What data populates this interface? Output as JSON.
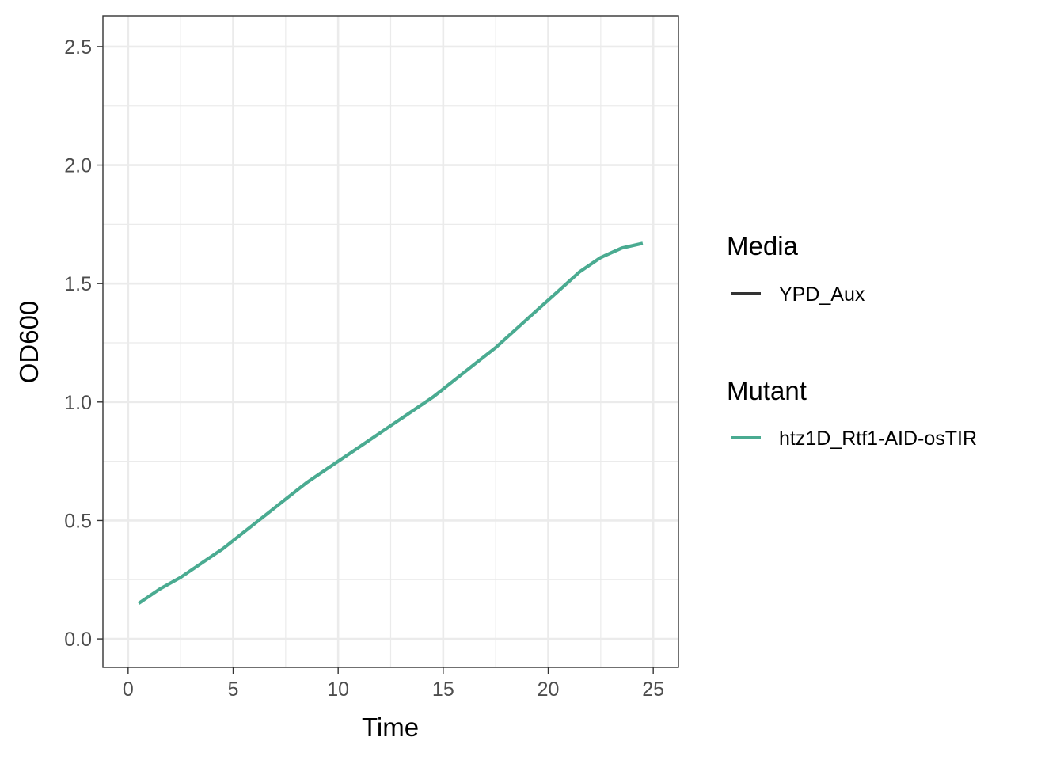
{
  "chart_data": {
    "type": "line",
    "xlabel": "Time",
    "ylabel": "OD600",
    "xlim": [
      -1.2,
      26.2
    ],
    "ylim": [
      -0.12,
      2.63
    ],
    "x_ticks": [
      0,
      5,
      10,
      15,
      20,
      25
    ],
    "x_tick_labels": [
      "0",
      "5",
      "10",
      "15",
      "20",
      "25"
    ],
    "y_ticks": [
      0,
      0.5,
      1,
      1.5,
      2,
      2.5
    ],
    "y_tick_labels": [
      "0.0",
      "0.5",
      "1.0",
      "1.5",
      "2.0",
      "2.5"
    ],
    "grid": true,
    "legend_position": "right",
    "legends": [
      {
        "title": "Media",
        "items": [
          {
            "label": "YPD_Aux",
            "color": "#333333"
          }
        ]
      },
      {
        "title": "Mutant",
        "items": [
          {
            "label": "htz1D_Rtf1-AID-osTIR",
            "color": "#4aab91"
          }
        ]
      }
    ],
    "series": [
      {
        "name": "htz1D_Rtf1-AID-osTIR",
        "color": "#4aab91",
        "x": [
          0.5,
          1.5,
          2.5,
          3.5,
          4.5,
          5.5,
          6.5,
          7.5,
          8.5,
          9.5,
          10.5,
          11.5,
          12.5,
          13.5,
          14.5,
          15.5,
          16.5,
          17.5,
          18.5,
          19.5,
          20.5,
          21.5,
          22.5,
          23.5,
          24.5
        ],
        "y": [
          0.15,
          0.21,
          0.26,
          0.32,
          0.38,
          0.45,
          0.52,
          0.59,
          0.66,
          0.72,
          0.78,
          0.84,
          0.9,
          0.96,
          1.02,
          1.09,
          1.16,
          1.23,
          1.31,
          1.39,
          1.47,
          1.55,
          1.61,
          1.65,
          1.67
        ]
      }
    ]
  }
}
